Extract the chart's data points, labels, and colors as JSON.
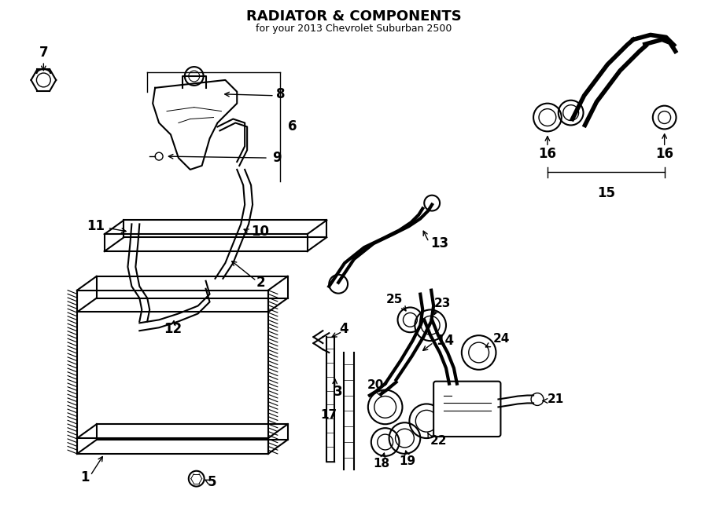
{
  "title": "RADIATOR & COMPONENTS",
  "subtitle": "for your 2013 Chevrolet Suburban 2500",
  "bg_color": "#ffffff",
  "lc": "#000000",
  "fig_width": 9.0,
  "fig_height": 6.61,
  "dpi": 100
}
